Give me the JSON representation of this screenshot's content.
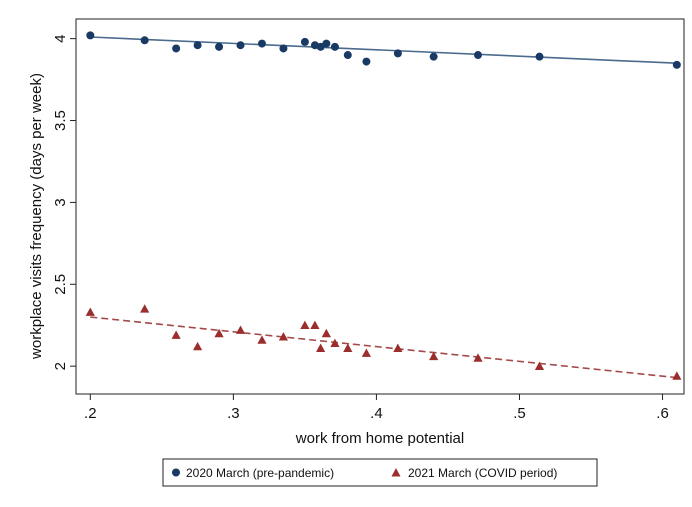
{
  "chart_data": {
    "type": "scatter",
    "title": "",
    "xlabel": "work from home potential",
    "ylabel": "workplace visits frequency (days per week)",
    "xlim": [
      0.19,
      0.615
    ],
    "ylim": [
      1.83,
      4.12
    ],
    "x_ticks": [
      0.2,
      0.3,
      0.4,
      0.5,
      0.6
    ],
    "x_tick_labels": [
      ".2",
      ".3",
      ".4",
      ".5",
      ".6"
    ],
    "y_ticks": [
      2,
      2.5,
      3,
      3.5,
      4
    ],
    "y_tick_labels": [
      "2",
      "2.5",
      "3",
      "3.5",
      "4"
    ],
    "grid": false,
    "legend_position": "bottom",
    "series": [
      {
        "name": "2020 March (pre-pandemic)",
        "marker": "circle",
        "color": "#1a3a66",
        "fit_color": "#4a6b8e",
        "fit_style": "solid",
        "fit": [
          [
            0.2,
            4.01
          ],
          [
            0.61,
            3.85
          ]
        ],
        "points": [
          [
            0.2,
            4.02
          ],
          [
            0.238,
            3.99
          ],
          [
            0.26,
            3.94
          ],
          [
            0.275,
            3.96
          ],
          [
            0.29,
            3.95
          ],
          [
            0.305,
            3.96
          ],
          [
            0.32,
            3.97
          ],
          [
            0.335,
            3.94
          ],
          [
            0.35,
            3.98
          ],
          [
            0.357,
            3.96
          ],
          [
            0.361,
            3.95
          ],
          [
            0.365,
            3.97
          ],
          [
            0.371,
            3.95
          ],
          [
            0.38,
            3.9
          ],
          [
            0.393,
            3.86
          ],
          [
            0.415,
            3.91
          ],
          [
            0.44,
            3.89
          ],
          [
            0.471,
            3.9
          ],
          [
            0.514,
            3.89
          ],
          [
            0.61,
            3.84
          ]
        ]
      },
      {
        "name": "2021 March (COVID period)",
        "marker": "triangle",
        "color": "#9b2d2d",
        "fit_color": "#a44a4a",
        "fit_style": "dashed",
        "fit": [
          [
            0.2,
            2.3
          ],
          [
            0.61,
            1.93
          ]
        ],
        "points": [
          [
            0.2,
            2.33
          ],
          [
            0.238,
            2.35
          ],
          [
            0.26,
            2.19
          ],
          [
            0.275,
            2.12
          ],
          [
            0.29,
            2.2
          ],
          [
            0.305,
            2.22
          ],
          [
            0.32,
            2.16
          ],
          [
            0.335,
            2.18
          ],
          [
            0.35,
            2.25
          ],
          [
            0.357,
            2.25
          ],
          [
            0.361,
            2.11
          ],
          [
            0.365,
            2.2
          ],
          [
            0.371,
            2.14
          ],
          [
            0.38,
            2.11
          ],
          [
            0.393,
            2.08
          ],
          [
            0.415,
            2.11
          ],
          [
            0.44,
            2.06
          ],
          [
            0.471,
            2.05
          ],
          [
            0.514,
            2.0
          ],
          [
            0.61,
            1.94
          ]
        ]
      }
    ]
  }
}
